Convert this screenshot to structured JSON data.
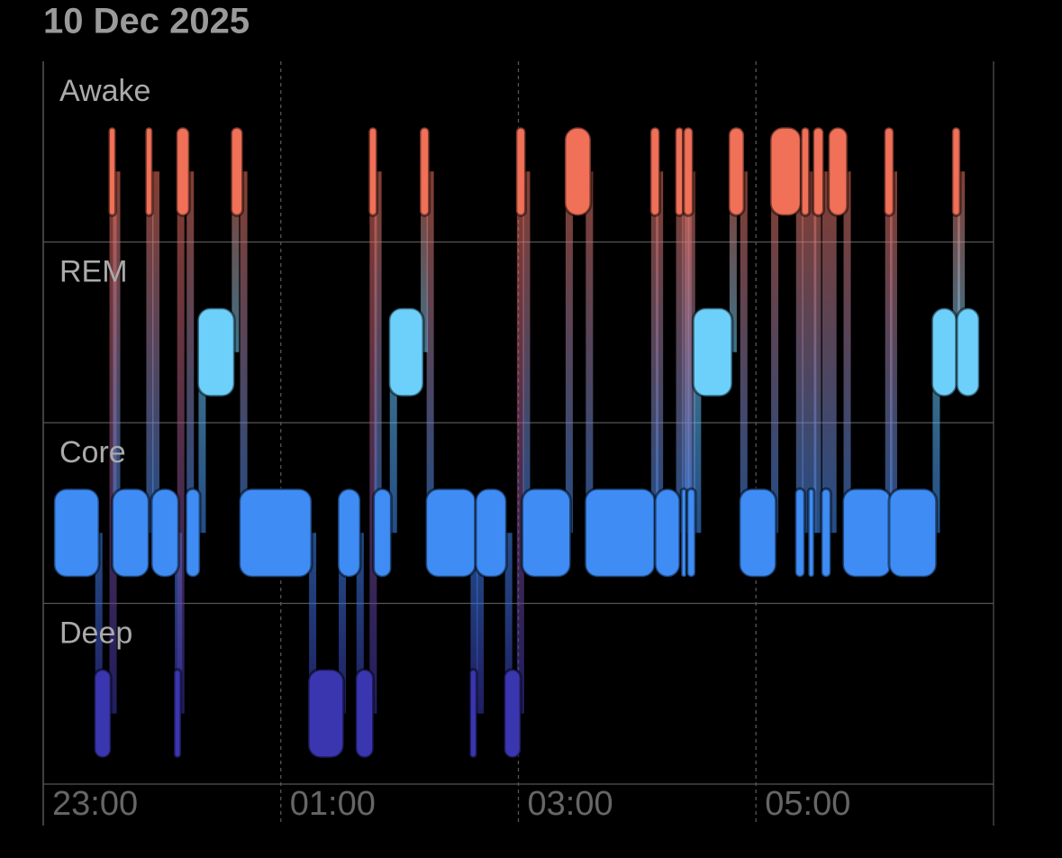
{
  "chart_data": {
    "type": "sleep-stages",
    "title": "10 Dec 2025",
    "categories": [
      "Awake",
      "REM",
      "Core",
      "Deep"
    ],
    "colors": {
      "Awake": "#f07058",
      "REM": "#6dd0fb",
      "Core": "#3f8cf5",
      "Deep": "#3a36b0"
    },
    "xlim": [
      23,
      31
    ],
    "xticks": [
      {
        "value": 23,
        "label": "23:00"
      },
      {
        "value": 25,
        "label": "01:00"
      },
      {
        "value": 27,
        "label": "03:00"
      },
      {
        "value": 29,
        "label": "05:00"
      }
    ],
    "segments": [
      {
        "stage": "Core",
        "start": 23.09,
        "end": 23.47
      },
      {
        "stage": "Deep",
        "start": 23.43,
        "end": 23.57
      },
      {
        "stage": "Awake",
        "start": 23.55,
        "end": 23.61
      },
      {
        "stage": "Core",
        "start": 23.58,
        "end": 23.89
      },
      {
        "stage": "Awake",
        "start": 23.86,
        "end": 23.92
      },
      {
        "stage": "Core",
        "start": 23.91,
        "end": 24.14
      },
      {
        "stage": "Deep",
        "start": 24.1,
        "end": 24.16
      },
      {
        "stage": "Awake",
        "start": 24.12,
        "end": 24.23
      },
      {
        "stage": "Core",
        "start": 24.2,
        "end": 24.32
      },
      {
        "stage": "REM",
        "start": 24.3,
        "end": 24.61
      },
      {
        "stage": "Awake",
        "start": 24.58,
        "end": 24.68
      },
      {
        "stage": "Core",
        "start": 24.65,
        "end": 25.26
      },
      {
        "stage": "Deep",
        "start": 25.23,
        "end": 25.53
      },
      {
        "stage": "Core",
        "start": 25.48,
        "end": 25.67
      },
      {
        "stage": "Deep",
        "start": 25.63,
        "end": 25.78
      },
      {
        "stage": "Awake",
        "start": 25.74,
        "end": 25.81
      },
      {
        "stage": "Core",
        "start": 25.78,
        "end": 25.93
      },
      {
        "stage": "REM",
        "start": 25.91,
        "end": 26.2
      },
      {
        "stage": "Awake",
        "start": 26.17,
        "end": 26.25
      },
      {
        "stage": "Core",
        "start": 26.22,
        "end": 26.64
      },
      {
        "stage": "Deep",
        "start": 26.59,
        "end": 26.65
      },
      {
        "stage": "Core",
        "start": 26.64,
        "end": 26.9
      },
      {
        "stage": "Deep",
        "start": 26.88,
        "end": 27.02
      },
      {
        "stage": "Awake",
        "start": 26.98,
        "end": 27.06
      },
      {
        "stage": "Core",
        "start": 27.03,
        "end": 27.44
      },
      {
        "stage": "Awake",
        "start": 27.39,
        "end": 27.61
      },
      {
        "stage": "Core",
        "start": 27.56,
        "end": 28.15
      },
      {
        "stage": "Awake",
        "start": 28.11,
        "end": 28.19
      },
      {
        "stage": "Core",
        "start": 28.15,
        "end": 28.36
      },
      {
        "stage": "Awake",
        "start": 28.32,
        "end": 28.39
      },
      {
        "stage": "Core",
        "start": 28.37,
        "end": 28.41
      },
      {
        "stage": "Awake",
        "start": 28.39,
        "end": 28.47
      },
      {
        "stage": "Core",
        "start": 28.42,
        "end": 28.49
      },
      {
        "stage": "REM",
        "start": 28.47,
        "end": 28.8
      },
      {
        "stage": "Awake",
        "start": 28.77,
        "end": 28.9
      },
      {
        "stage": "Core",
        "start": 28.86,
        "end": 29.17
      },
      {
        "stage": "Awake",
        "start": 29.12,
        "end": 29.38
      },
      {
        "stage": "Core",
        "start": 29.33,
        "end": 29.41
      },
      {
        "stage": "Awake",
        "start": 29.38,
        "end": 29.45
      },
      {
        "stage": "Core",
        "start": 29.44,
        "end": 29.49
      },
      {
        "stage": "Awake",
        "start": 29.48,
        "end": 29.57
      },
      {
        "stage": "Core",
        "start": 29.55,
        "end": 29.63
      },
      {
        "stage": "Awake",
        "start": 29.61,
        "end": 29.77
      },
      {
        "stage": "Core",
        "start": 29.73,
        "end": 30.14
      },
      {
        "stage": "Awake",
        "start": 30.08,
        "end": 30.16
      },
      {
        "stage": "Core",
        "start": 30.12,
        "end": 30.52
      },
      {
        "stage": "REM",
        "start": 30.48,
        "end": 30.69
      },
      {
        "stage": "Awake",
        "start": 30.65,
        "end": 30.72
      },
      {
        "stage": "REM",
        "start": 30.69,
        "end": 30.88
      }
    ]
  }
}
